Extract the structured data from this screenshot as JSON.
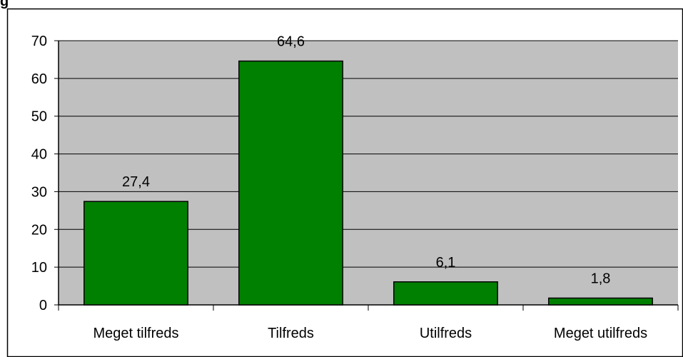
{
  "chart_data": {
    "type": "bar",
    "title": "g",
    "categories": [
      "Meget tilfreds",
      "Tilfreds",
      "Utilfreds",
      "Meget utilfreds"
    ],
    "values": [
      27.4,
      64.6,
      6.1,
      1.8
    ],
    "value_labels": [
      "27,4",
      "64,6",
      "6,1",
      "1,8"
    ],
    "color": "#008000",
    "ylim": [
      0,
      70
    ],
    "yticks": [
      0,
      10,
      20,
      30,
      40,
      50,
      60,
      70
    ],
    "grid": true
  }
}
